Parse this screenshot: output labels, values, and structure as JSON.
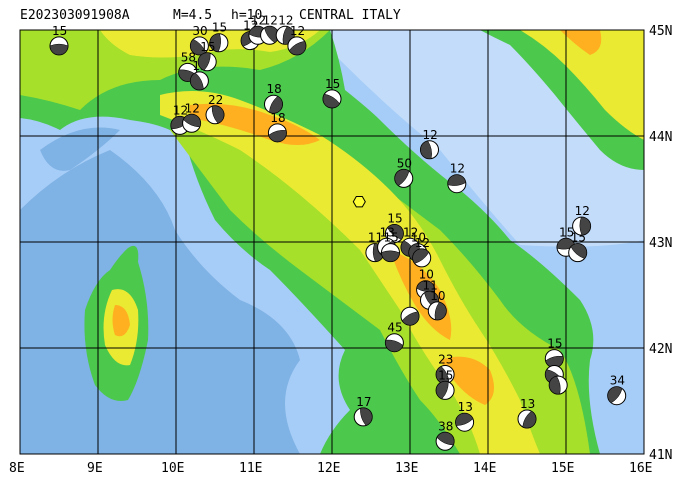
{
  "header": {
    "event_id": "E202303091908A",
    "magnitude": "M=4.5",
    "depth": "h=10",
    "region": "CENTRAL ITALY"
  },
  "map": {
    "lon_range": [
      8,
      16
    ],
    "lat_range": [
      41,
      45
    ],
    "lon_ticks": [
      "8E",
      "9E",
      "10E",
      "11E",
      "12E",
      "13E",
      "14E",
      "15E",
      "16E"
    ],
    "lat_ticks": [
      "45N",
      "44N",
      "43N",
      "42N",
      "41N"
    ],
    "colors": {
      "sea_deep": "#7fb2e5",
      "sea_shallow": "#a6cdf7",
      "sea_shelf": "#c2dcfa",
      "lowland": "#4cc84c",
      "hills": "#a6e02a",
      "upland": "#eaea32",
      "mountain": "#ffb020",
      "peak": "#f08a60",
      "target": "#ffff33"
    },
    "target_event": {
      "lon": 12.35,
      "lat": 43.38,
      "marker": "hexagon"
    },
    "mechanisms": [
      {
        "lon": 8.5,
        "lat": 44.85,
        "depth": "15"
      },
      {
        "lon": 10.3,
        "lat": 44.85,
        "depth": "30"
      },
      {
        "lon": 10.55,
        "lat": 44.88,
        "depth": "15"
      },
      {
        "lon": 10.95,
        "lat": 44.9,
        "depth": "12"
      },
      {
        "lon": 11.05,
        "lat": 44.95,
        "depth": "12"
      },
      {
        "lon": 11.2,
        "lat": 44.95,
        "depth": "12"
      },
      {
        "lon": 11.4,
        "lat": 44.95,
        "depth": "12"
      },
      {
        "lon": 11.55,
        "lat": 44.85,
        "depth": "12"
      },
      {
        "lon": 10.15,
        "lat": 44.6,
        "depth": "58"
      },
      {
        "lon": 10.3,
        "lat": 44.52,
        "depth": "15"
      },
      {
        "lon": 10.4,
        "lat": 44.7,
        "depth": "15"
      },
      {
        "lon": 10.05,
        "lat": 44.1,
        "depth": "12"
      },
      {
        "lon": 10.2,
        "lat": 44.12,
        "depth": "12"
      },
      {
        "lon": 10.5,
        "lat": 44.2,
        "depth": "22"
      },
      {
        "lon": 11.25,
        "lat": 44.3,
        "depth": "18"
      },
      {
        "lon": 11.3,
        "lat": 44.03,
        "depth": "18"
      },
      {
        "lon": 12.0,
        "lat": 44.35,
        "depth": "15"
      },
      {
        "lon": 13.25,
        "lat": 43.87,
        "depth": "12"
      },
      {
        "lon": 12.92,
        "lat": 43.6,
        "depth": "50"
      },
      {
        "lon": 13.6,
        "lat": 43.55,
        "depth": "12"
      },
      {
        "lon": 12.8,
        "lat": 43.08,
        "depth": "15"
      },
      {
        "lon": 12.55,
        "lat": 42.9,
        "depth": "11"
      },
      {
        "lon": 12.7,
        "lat": 42.95,
        "depth": "13"
      },
      {
        "lon": 12.75,
        "lat": 42.9,
        "depth": "15"
      },
      {
        "lon": 13.0,
        "lat": 42.95,
        "depth": "12"
      },
      {
        "lon": 13.1,
        "lat": 42.9,
        "depth": "10"
      },
      {
        "lon": 13.15,
        "lat": 42.85,
        "depth": "12"
      },
      {
        "lon": 13.2,
        "lat": 42.55,
        "depth": "10"
      },
      {
        "lon": 13.25,
        "lat": 42.45,
        "depth": "11"
      },
      {
        "lon": 13.35,
        "lat": 42.35,
        "depth": "10"
      },
      {
        "lon": 13.0,
        "lat": 42.3,
        "depth": ""
      },
      {
        "lon": 12.8,
        "lat": 42.05,
        "depth": "45"
      },
      {
        "lon": 13.45,
        "lat": 41.75,
        "depth": "23"
      },
      {
        "lon": 13.45,
        "lat": 41.6,
        "depth": "15"
      },
      {
        "lon": 13.7,
        "lat": 41.3,
        "depth": "13"
      },
      {
        "lon": 13.45,
        "lat": 41.12,
        "depth": "38"
      },
      {
        "lon": 12.4,
        "lat": 41.35,
        "depth": "17"
      },
      {
        "lon": 14.5,
        "lat": 41.33,
        "depth": "13"
      },
      {
        "lon": 14.85,
        "lat": 41.9,
        "depth": "15"
      },
      {
        "lon": 14.85,
        "lat": 41.75,
        "depth": ""
      },
      {
        "lon": 14.9,
        "lat": 41.65,
        "depth": ""
      },
      {
        "lon": 15.65,
        "lat": 41.55,
        "depth": "34"
      },
      {
        "lon": 15.0,
        "lat": 42.95,
        "depth": "15"
      },
      {
        "lon": 15.15,
        "lat": 42.9,
        "depth": "15"
      },
      {
        "lon": 15.2,
        "lat": 43.15,
        "depth": "12"
      }
    ]
  }
}
